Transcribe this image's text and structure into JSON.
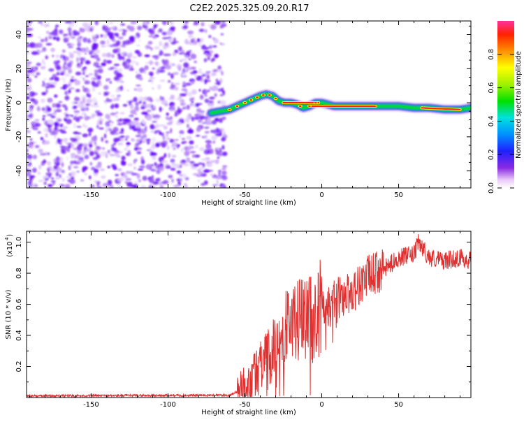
{
  "title": "C2E2.2025.325.09.20.R17",
  "chart_data": [
    {
      "type": "heatmap",
      "xlabel": "Height of straight line (km)",
      "ylabel": "Frequency (Hz)",
      "xlim": [
        -192,
        97
      ],
      "ylim": [
        -50,
        48
      ],
      "xticks": [
        -150,
        -100,
        -50,
        0,
        50
      ],
      "yticks": [
        -40,
        -20,
        0,
        20,
        40
      ],
      "noise_region_x": [
        -192,
        -63
      ],
      "ridge": {
        "x": [
          -72,
          -66,
          -60,
          -55,
          -50,
          -45,
          -40,
          -36,
          -32,
          -28,
          -24,
          -20,
          -16,
          -12,
          -8,
          -4,
          0,
          4,
          8,
          12,
          20,
          30,
          40,
          50,
          60,
          70,
          80,
          90,
          97
        ],
        "y": [
          -6,
          -5,
          -4,
          -2,
          0,
          2,
          4,
          5,
          4,
          1,
          0,
          0,
          -1,
          -3,
          -2,
          0,
          0,
          -1,
          -2,
          -2,
          -2,
          -2,
          -2,
          -2,
          -3,
          -3,
          -4,
          -4,
          -3
        ]
      },
      "colorbar": {
        "label": "Normalized spectral amplitude",
        "range": [
          0,
          1
        ],
        "ticks": [
          "0.0",
          "0.2",
          "0.4",
          "0.6",
          "0.8"
        ]
      }
    },
    {
      "type": "line",
      "xlabel": "Height of straight line (km)",
      "ylabel": "SNR (10 * v/v)",
      "y_multiplier": "(x10",
      "y_multiplier_exp": "4",
      "xlim": [
        -192,
        97
      ],
      "ylim": [
        0,
        1.07
      ],
      "xticks": [
        -150,
        -100,
        -50,
        0,
        50
      ],
      "yticks": [
        "0.2",
        "0.4",
        "0.6",
        "0.8",
        "1.0"
      ],
      "color": "#e03030",
      "trend": {
        "x": [
          -192,
          -60,
          -50,
          -40,
          -30,
          -25,
          -20,
          -10,
          0,
          10,
          20,
          30,
          40,
          50,
          60,
          63,
          70,
          80,
          90,
          97
        ],
        "y": [
          0.01,
          0.015,
          0.06,
          0.18,
          0.32,
          0.42,
          0.5,
          0.5,
          0.58,
          0.64,
          0.68,
          0.78,
          0.82,
          0.9,
          0.92,
          1.0,
          0.9,
          0.88,
          0.9,
          0.88
        ]
      }
    }
  ]
}
